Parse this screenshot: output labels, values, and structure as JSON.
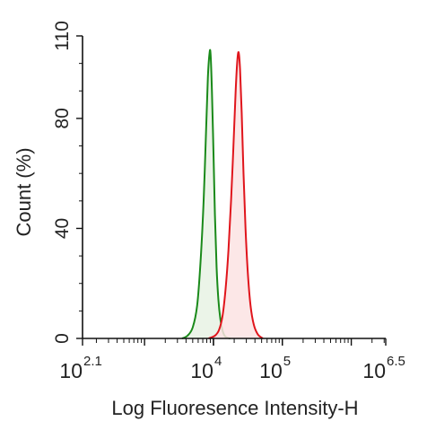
{
  "chart_data": {
    "type": "area",
    "xlabel": "Log Fluoresence Intensity-H",
    "ylabel": "Count  (%)",
    "x_scale": "log",
    "xlim": [
      125.9,
      3162278
    ],
    "ylim": [
      0,
      110
    ],
    "x_ticks": [
      {
        "value": 125.9,
        "base": "10",
        "exponent": "2.1"
      },
      {
        "value": 10000,
        "base": "10",
        "exponent": "4"
      },
      {
        "value": 100000,
        "base": "10",
        "exponent": "5"
      },
      {
        "value": 3162278,
        "base": "10",
        "exponent": "6.5"
      }
    ],
    "y_ticks": [
      "0",
      "40",
      "80",
      "110"
    ],
    "grid": false,
    "legend": "none",
    "series": [
      {
        "color": "#1a8a1a",
        "fill": "#e8f2e4",
        "x": [
          3500,
          4200,
          5000,
          5800,
          6500,
          7200,
          7800,
          8300,
          8800,
          9100,
          9500,
          10000,
          10500,
          11100,
          11800,
          12600,
          13500,
          14500,
          15800,
          17500
        ],
        "y": [
          0,
          1,
          4,
          12,
          28,
          50,
          75,
          95,
          104,
          103,
          90,
          68,
          45,
          26,
          14,
          7,
          3,
          1,
          0.3,
          0
        ]
      },
      {
        "color": "#e0151c",
        "fill": "#fbe3e3",
        "x": [
          8500,
          10500,
          12000,
          13500,
          15000,
          16500,
          18000,
          19500,
          21000,
          22200,
          23200,
          24300,
          25700,
          27300,
          29200,
          31500,
          34500,
          38500,
          44000,
          52000
        ],
        "y": [
          0,
          1,
          3,
          8,
          18,
          32,
          50,
          70,
          90,
          101,
          104,
          98,
          82,
          60,
          40,
          24,
          12,
          5,
          1.5,
          0
        ]
      }
    ]
  }
}
